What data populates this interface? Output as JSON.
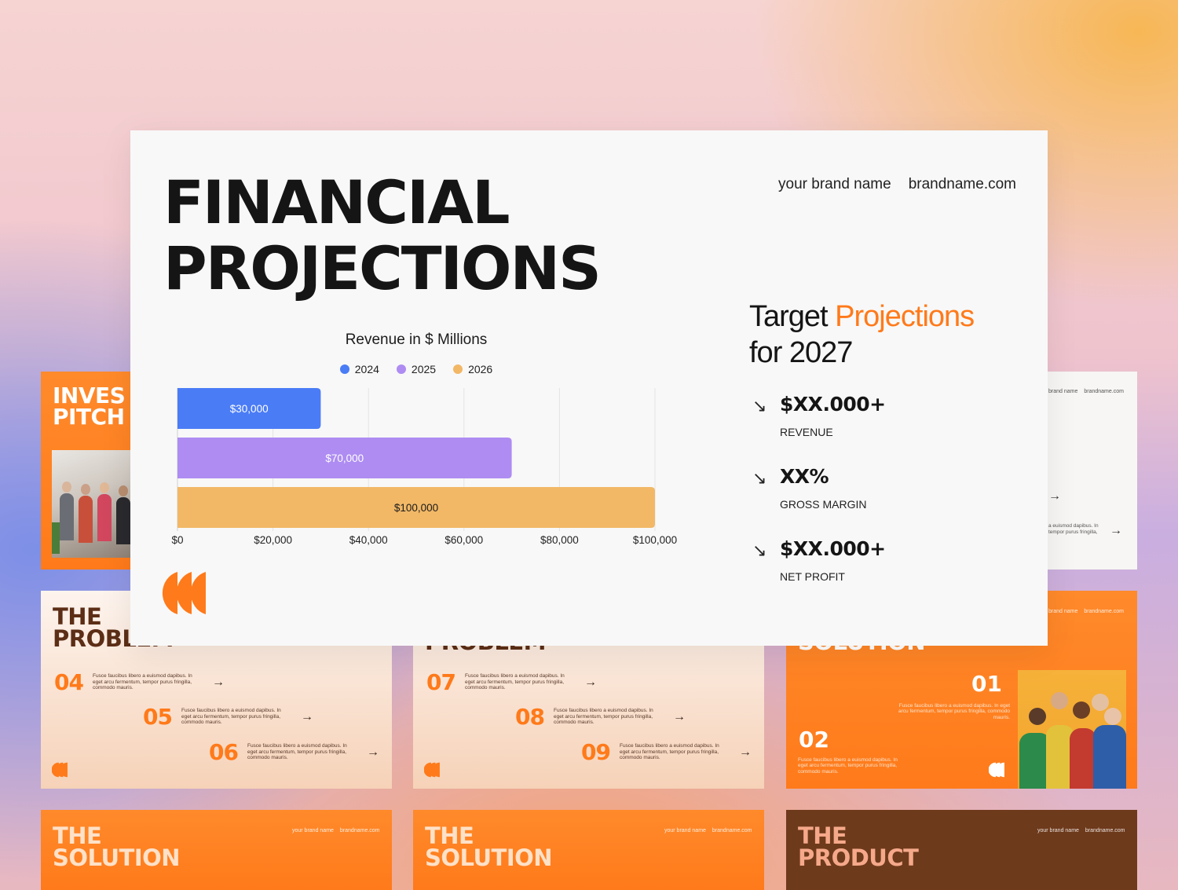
{
  "main_slide": {
    "title_line1": "FINANCIAL",
    "title_line2": "PROJECTIONS",
    "brand_name": "your brand name",
    "brand_url": "brandname.com",
    "target": {
      "text_before": "Target ",
      "text_accent": "Projections",
      "text_line2": "for 2027",
      "accent_color": "#ff7a1a"
    },
    "metrics": [
      {
        "icon": "arrow-down-right-icon",
        "value": "$XX.000+",
        "label": "REVENUE"
      },
      {
        "icon": "arrow-down-right-icon",
        "value": "XX%",
        "label": "GROSS MARGIN"
      },
      {
        "icon": "arrow-down-right-icon",
        "value": "$XX.000+",
        "label": "NET PROFIT"
      }
    ]
  },
  "chart_data": {
    "type": "bar",
    "orientation": "horizontal",
    "title": "Revenue in $ Millions",
    "series": [
      {
        "name": "2024",
        "value": 30000,
        "label": "$30,000",
        "color": "#4a7cf6"
      },
      {
        "name": "2025",
        "value": 70000,
        "label": "$70,000",
        "color": "#ae8cf2"
      },
      {
        "name": "2026",
        "value": 100000,
        "label": "$100,000",
        "color": "#f2b866"
      }
    ],
    "xlim": [
      0,
      100000
    ],
    "xticks": [
      "$0",
      "$20,000",
      "$40,000",
      "$60,000",
      "$80,000",
      "$100,000"
    ],
    "grid": true,
    "legend_position": "top-center"
  },
  "bg_slides": {
    "investor": {
      "title_line1": "INVES",
      "title_line2": "PITCH"
    },
    "right_white": {
      "brand_name": "brand name",
      "brand_url": "brandname.com",
      "text1": "a euismod dapibus. In",
      "text2": "tempor purus fringilla,"
    },
    "problem1": {
      "title_line1": "THE",
      "title_line2": "PROBLEM",
      "items": [
        {
          "num": "04",
          "text": "Fusce faucibus libero a euismod dapibus. In eget arcu fermentum, tempor purus fringilla, commodo mauris."
        },
        {
          "num": "05",
          "text": "Fusce faucibus libero a euismod dapibus. In eget arcu fermentum, tempor purus fringilla, commodo mauris."
        },
        {
          "num": "06",
          "text": "Fusce faucibus libero a euismod dapibus. In eget arcu fermentum, tempor purus fringilla, commodo mauris."
        }
      ]
    },
    "problem2": {
      "title": "PROBLEM",
      "items": [
        {
          "num": "07",
          "text": "Fusce faucibus libero a euismod dapibus. In eget arcu fermentum, tempor purus fringilla, commodo mauris."
        },
        {
          "num": "08",
          "text": "Fusce faucibus libero a euismod dapibus. In eget arcu fermentum, tempor purus fringilla, commodo mauris."
        },
        {
          "num": "09",
          "text": "Fusce faucibus libero a euismod dapibus. In eget arcu fermentum, tempor purus fringilla, commodo mauris."
        }
      ]
    },
    "solution_right": {
      "title": "SOLUTION",
      "brand_name": "brand name",
      "brand_url": "brandname.com",
      "num1": "01",
      "text1": "Fusce faucibus libero a euismod dapibus. In eget arcu fermentum, tempor purus fringilla, commodo mauris.",
      "num2": "02",
      "text2": "Fusce faucibus libero a euismod dapibus. In eget arcu fermentum, tempor purus fringilla, commodo mauris."
    },
    "solution1": {
      "title_line1": "THE",
      "title_line2": "SOLUTION",
      "brand_name": "your brand name",
      "brand_url": "brandname.com"
    },
    "solution2": {
      "title_line1": "THE",
      "title_line2": "SOLUTION",
      "brand_name": "your brand name",
      "brand_url": "brandname.com"
    },
    "product": {
      "title_line1": "THE",
      "title_line2": "PRODUCT",
      "brand_name": "your brand name",
      "brand_url": "brandname.com"
    }
  }
}
